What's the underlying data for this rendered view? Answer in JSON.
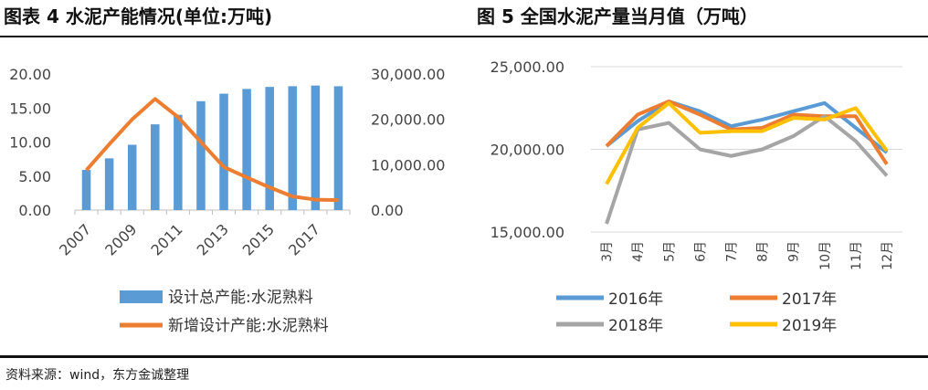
{
  "header": {
    "left_title": "图表 4   水泥产能情况(单位:万吨)",
    "right_title": "图 5   全国水泥产量当月值（万吨）"
  },
  "footer": {
    "source": "资料来源：wind，东方金诚整理"
  },
  "colors": {
    "blue": "#5B9BD5",
    "orange": "#ED7D31",
    "gray": "#A5A5A5",
    "yellow": "#FFC000"
  },
  "chart_data": [
    {
      "type": "bar",
      "title": "水泥产能情况(单位:万吨)",
      "categories": [
        "2007",
        "2008",
        "2009",
        "2010",
        "2011",
        "2012",
        "2013",
        "2014",
        "2015",
        "2016",
        "2017",
        "2018"
      ],
      "x_tick_labels": [
        "2007",
        "2009",
        "2011",
        "2013",
        "2015",
        "2017"
      ],
      "left_axis": {
        "ylim": [
          0,
          20
        ],
        "ticks": [
          "0.00",
          "5.00",
          "10.00",
          "15.00",
          "20.00"
        ]
      },
      "right_axis": {
        "ylim": [
          0,
          30000
        ],
        "ticks": [
          "0.00",
          "10,000.00",
          "20,000.00",
          "30,000.00"
        ]
      },
      "series": [
        {
          "name": "设计总产能:水泥熟料",
          "type": "bar",
          "axis": "left",
          "color": "#5B9BD5",
          "values": [
            5.9,
            7.6,
            9.6,
            12.6,
            14.0,
            16.0,
            17.1,
            17.8,
            18.1,
            18.2,
            18.3,
            18.2
          ]
        },
        {
          "name": "新增设计产能:水泥熟料",
          "type": "line",
          "axis": "right",
          "color": "#ED7D31",
          "values": [
            8800,
            14500,
            20000,
            24500,
            20500,
            15000,
            9500,
            7200,
            5000,
            3000,
            2300,
            2200
          ]
        }
      ]
    },
    {
      "type": "line",
      "title": "全国水泥产量当月值（万吨）",
      "categories": [
        "3月",
        "4月",
        "5月",
        "6月",
        "7月",
        "8月",
        "9月",
        "10月",
        "11月",
        "12月"
      ],
      "ylim": [
        15000,
        25000
      ],
      "y_ticks": [
        "15,000.00",
        "20,000.00",
        "25,000.00"
      ],
      "series": [
        {
          "name": "2016年",
          "color": "#5B9BD5",
          "values": [
            20200,
            21700,
            22900,
            22300,
            21400,
            21800,
            22300,
            22800,
            21300,
            19800
          ]
        },
        {
          "name": "2017年",
          "color": "#ED7D31",
          "values": [
            20200,
            22100,
            22900,
            22100,
            21200,
            21300,
            22100,
            22000,
            22000,
            19100
          ]
        },
        {
          "name": "2018年",
          "color": "#A5A5A5",
          "values": [
            15500,
            21200,
            21600,
            20000,
            19600,
            20000,
            20800,
            22000,
            20500,
            18400
          ]
        },
        {
          "name": "2019年",
          "color": "#FFC000",
          "values": [
            17900,
            21300,
            22800,
            21000,
            21100,
            21100,
            21900,
            21800,
            22500,
            19900
          ]
        }
      ]
    }
  ]
}
